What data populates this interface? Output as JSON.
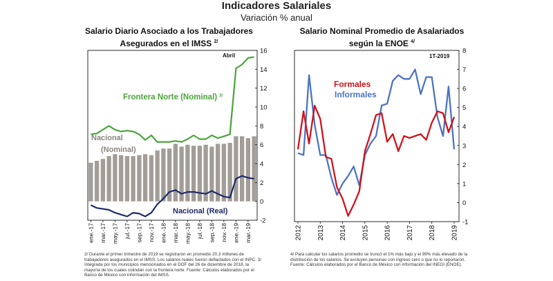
{
  "header": {
    "title": "Indicadores Salariales",
    "subtitle": "Variación % anual"
  },
  "notes": {
    "left": "2/ Durante el primer trimestre de 2019 se registraron en promedio 20.3 millones de trabajadores asegurados en el IMSS. Los salarios reales fueron deflactados con el INPC. 3/ Integrada por los municipios mencionados en el DOF del 26 de diciembre de 2018, la mayoría de los cuales colindan con la frontera norte. Fuente: Cálculos elaborados por el Banco de México con información del IMSS.",
    "right": "4/ Para calcular los salarios promedio se truncó el 1% más bajo y el 99% más elevado de la distribución de los salarios. Se excluyen personas con ingreso cero o que no lo reportaron. Fuente: Cálculos elaborados por el Banco de México con información del INEGI (ENOE)."
  },
  "chart_data": [
    {
      "type": "bar",
      "title": "Salario Diario Asociado a los Trabajadores Asegurados en el IMSS 2/",
      "title_line1": "Salario Diario Asociado a los Trabajadores",
      "title_line2": "Asegurados en el IMSS",
      "title_sup": "2/",
      "ylim": [
        -2,
        16
      ],
      "yticks": [
        -2,
        0,
        2,
        4,
        6,
        8,
        10,
        12,
        14,
        16
      ],
      "y_axis_side": "right",
      "grid": false,
      "x_tick_labels": [
        "ene.-17",
        "mar.-17",
        "may.-17",
        "jul.-17",
        "sep.-17",
        "nov.-17",
        "ene.-18",
        "mar.-18",
        "may.-18",
        "jul.-18",
        "sep.-18",
        "nov.-18",
        "ene.-19",
        "mar.-19"
      ],
      "x": [
        "ene.-17",
        "feb.-17",
        "mar.-17",
        "abr.-17",
        "may.-17",
        "jun.-17",
        "jul.-17",
        "ago.-17",
        "sep.-17",
        "oct.-17",
        "nov.-17",
        "dic.-17",
        "ene.-18",
        "feb.-18",
        "mar.-18",
        "abr.-18",
        "may.-18",
        "jun.-18",
        "jul.-18",
        "ago.-18",
        "sep.-18",
        "oct.-18",
        "nov.-18",
        "dic.-18",
        "ene.-19",
        "feb.-19",
        "mar.-19",
        "abr.-19"
      ],
      "annotations": {
        "month": "Abril",
        "frontera": "Frontera Norte (Nominal)",
        "frontera_sup": "3/",
        "nacional_nominal_1": "Nacional",
        "nacional_nominal_2": "(Nominal)",
        "nacional_real": "Nacional (Real)"
      },
      "series": [
        {
          "name": "Nacional (Nominal)",
          "kind": "bar",
          "color": "#a39d97",
          "values": [
            4.1,
            4.3,
            4.5,
            4.8,
            5.0,
            4.9,
            4.8,
            4.8,
            4.9,
            5.0,
            4.9,
            5.4,
            5.6,
            5.6,
            6.1,
            5.8,
            6.0,
            5.9,
            5.9,
            6.0,
            5.8,
            6.1,
            6.1,
            6.2,
            6.9,
            6.9,
            6.7,
            6.9
          ]
        },
        {
          "name": "Frontera Norte (Nominal)",
          "kind": "line",
          "color": "#4aa43a",
          "values": [
            7.1,
            7.2,
            7.6,
            8.0,
            7.6,
            7.4,
            7.5,
            7.4,
            7.1,
            6.5,
            7.0,
            6.3,
            6.3,
            6.3,
            6.4,
            6.3,
            6.6,
            7.0,
            6.6,
            6.6,
            7.0,
            6.7,
            6.9,
            7.1,
            14.1,
            14.5,
            15.2,
            15.3
          ]
        },
        {
          "name": "Nacional (Real)",
          "kind": "line",
          "color": "#1d2a6b",
          "values": [
            -0.4,
            -0.7,
            -0.8,
            -0.9,
            -1.2,
            -1.4,
            -1.6,
            -1.2,
            -1.3,
            -1.6,
            -1.2,
            -0.3,
            0.3,
            1.0,
            1.2,
            0.8,
            1.0,
            1.0,
            0.9,
            0.8,
            1.1,
            0.8,
            0.5,
            0.4,
            2.4,
            2.7,
            2.5,
            2.4
          ]
        }
      ]
    },
    {
      "type": "line",
      "title": "Salario Nominal Promedio de Asalariados según la ENOE 4/",
      "title_line1": "Salario Nominal Promedio de Asalariados",
      "title_line2": "según la ENOE",
      "title_sup": "4/",
      "ylim": [
        -1,
        8
      ],
      "yticks": [
        -1,
        0,
        1,
        2,
        3,
        4,
        5,
        6,
        7,
        8
      ],
      "y_axis_side": "right",
      "grid": false,
      "x_tick_labels": [
        "2012",
        "2013",
        "2014",
        "2015",
        "2016",
        "2017",
        "2018",
        "2019"
      ],
      "annotations": {
        "period": "1T-2019"
      },
      "x": [
        "2012-I",
        "2012-II",
        "2012-III",
        "2012-IV",
        "2013-I",
        "2013-II",
        "2013-III",
        "2013-IV",
        "2014-I",
        "2014-II",
        "2014-III",
        "2014-IV",
        "2015-I",
        "2015-II",
        "2015-III",
        "2015-IV",
        "2016-I",
        "2016-II",
        "2016-III",
        "2016-IV",
        "2017-I",
        "2017-II",
        "2017-III",
        "2017-IV",
        "2018-I",
        "2018-II",
        "2018-III",
        "2018-IV",
        "2019-I"
      ],
      "series": [
        {
          "name": "Formales",
          "color": "#d0121b",
          "values": [
            2.8,
            4.8,
            3.1,
            5.1,
            4.4,
            2.4,
            2.3,
            0.8,
            0.2,
            -0.7,
            -0.1,
            0.6,
            2.7,
            3.6,
            4.6,
            4.7,
            3.2,
            3.6,
            2.7,
            3.5,
            3.4,
            3.5,
            3.6,
            3.3,
            4.2,
            4.8,
            4.7,
            3.7,
            4.5
          ]
        },
        {
          "name": "Informales",
          "color": "#4a74c2",
          "values": [
            2.6,
            2.5,
            6.7,
            4.1,
            2.5,
            2.5,
            1.3,
            0.4,
            1.0,
            1.4,
            1.9,
            0.9,
            2.5,
            3.1,
            3.5,
            5.1,
            5.2,
            6.4,
            6.7,
            6.5,
            6.5,
            7.0,
            5.7,
            6.6,
            6.6,
            4.5,
            3.5,
            6.1,
            2.8
          ]
        }
      ]
    }
  ]
}
